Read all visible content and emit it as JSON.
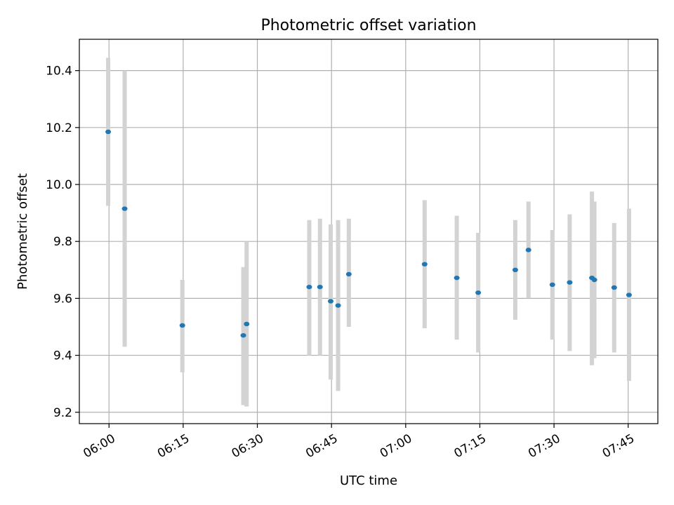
{
  "chart_data": {
    "type": "scatter",
    "title": "Photometric offset variation",
    "xlabel": "UTC time",
    "ylabel": "Photometric offset",
    "x_ticks": [
      "06:00",
      "06:15",
      "06:30",
      "06:45",
      "07:00",
      "07:15",
      "07:30",
      "07:45"
    ],
    "y_ticks": [
      "9.2",
      "9.4",
      "9.6",
      "9.8",
      "10.0",
      "10.2",
      "10.4"
    ],
    "xlim": [
      "05:54",
      "07:51"
    ],
    "ylim": [
      9.16,
      10.51
    ],
    "grid": true,
    "colors": {
      "point": "#1f77b4",
      "error_bar": "#d3d3d3",
      "grid": "#b0b0b0"
    },
    "series": [
      {
        "points": [
          {
            "x": "05:59:50",
            "y": 10.185,
            "ylow": 9.925,
            "yhigh": 10.445
          },
          {
            "x": "06:03:10",
            "y": 9.915,
            "ylow": 9.43,
            "yhigh": 10.4
          },
          {
            "x": "06:14:50",
            "y": 9.505,
            "ylow": 9.34,
            "yhigh": 9.665
          },
          {
            "x": "06:27:10",
            "y": 9.47,
            "ylow": 9.225,
            "yhigh": 9.71
          },
          {
            "x": "06:27:50",
            "y": 9.51,
            "ylow": 9.22,
            "yhigh": 9.8
          },
          {
            "x": "06:40:30",
            "y": 9.64,
            "ylow": 9.4,
            "yhigh": 9.875
          },
          {
            "x": "06:42:40",
            "y": 9.64,
            "ylow": 9.4,
            "yhigh": 9.88
          },
          {
            "x": "06:44:50",
            "y": 9.59,
            "ylow": 9.315,
            "yhigh": 9.86
          },
          {
            "x": "06:46:20",
            "y": 9.575,
            "ylow": 9.275,
            "yhigh": 9.875
          },
          {
            "x": "06:48:30",
            "y": 9.685,
            "ylow": 9.5,
            "yhigh": 9.88
          },
          {
            "x": "07:03:50",
            "y": 9.72,
            "ylow": 9.495,
            "yhigh": 9.945
          },
          {
            "x": "07:10:20",
            "y": 9.672,
            "ylow": 9.455,
            "yhigh": 9.89
          },
          {
            "x": "07:14:40",
            "y": 9.62,
            "ylow": 9.41,
            "yhigh": 9.83
          },
          {
            "x": "07:22:10",
            "y": 9.7,
            "ylow": 9.525,
            "yhigh": 9.875
          },
          {
            "x": "07:24:50",
            "y": 9.77,
            "ylow": 9.6,
            "yhigh": 9.94
          },
          {
            "x": "07:29:40",
            "y": 9.648,
            "ylow": 9.455,
            "yhigh": 9.84
          },
          {
            "x": "07:33:10",
            "y": 9.656,
            "ylow": 9.415,
            "yhigh": 9.895
          },
          {
            "x": "07:37:40",
            "y": 9.672,
            "ylow": 9.365,
            "yhigh": 9.975
          },
          {
            "x": "07:38:10",
            "y": 9.665,
            "ylow": 9.39,
            "yhigh": 9.94
          },
          {
            "x": "07:42:10",
            "y": 9.638,
            "ylow": 9.41,
            "yhigh": 9.865
          },
          {
            "x": "07:45:10",
            "y": 9.612,
            "ylow": 9.31,
            "yhigh": 9.915
          }
        ]
      }
    ]
  }
}
